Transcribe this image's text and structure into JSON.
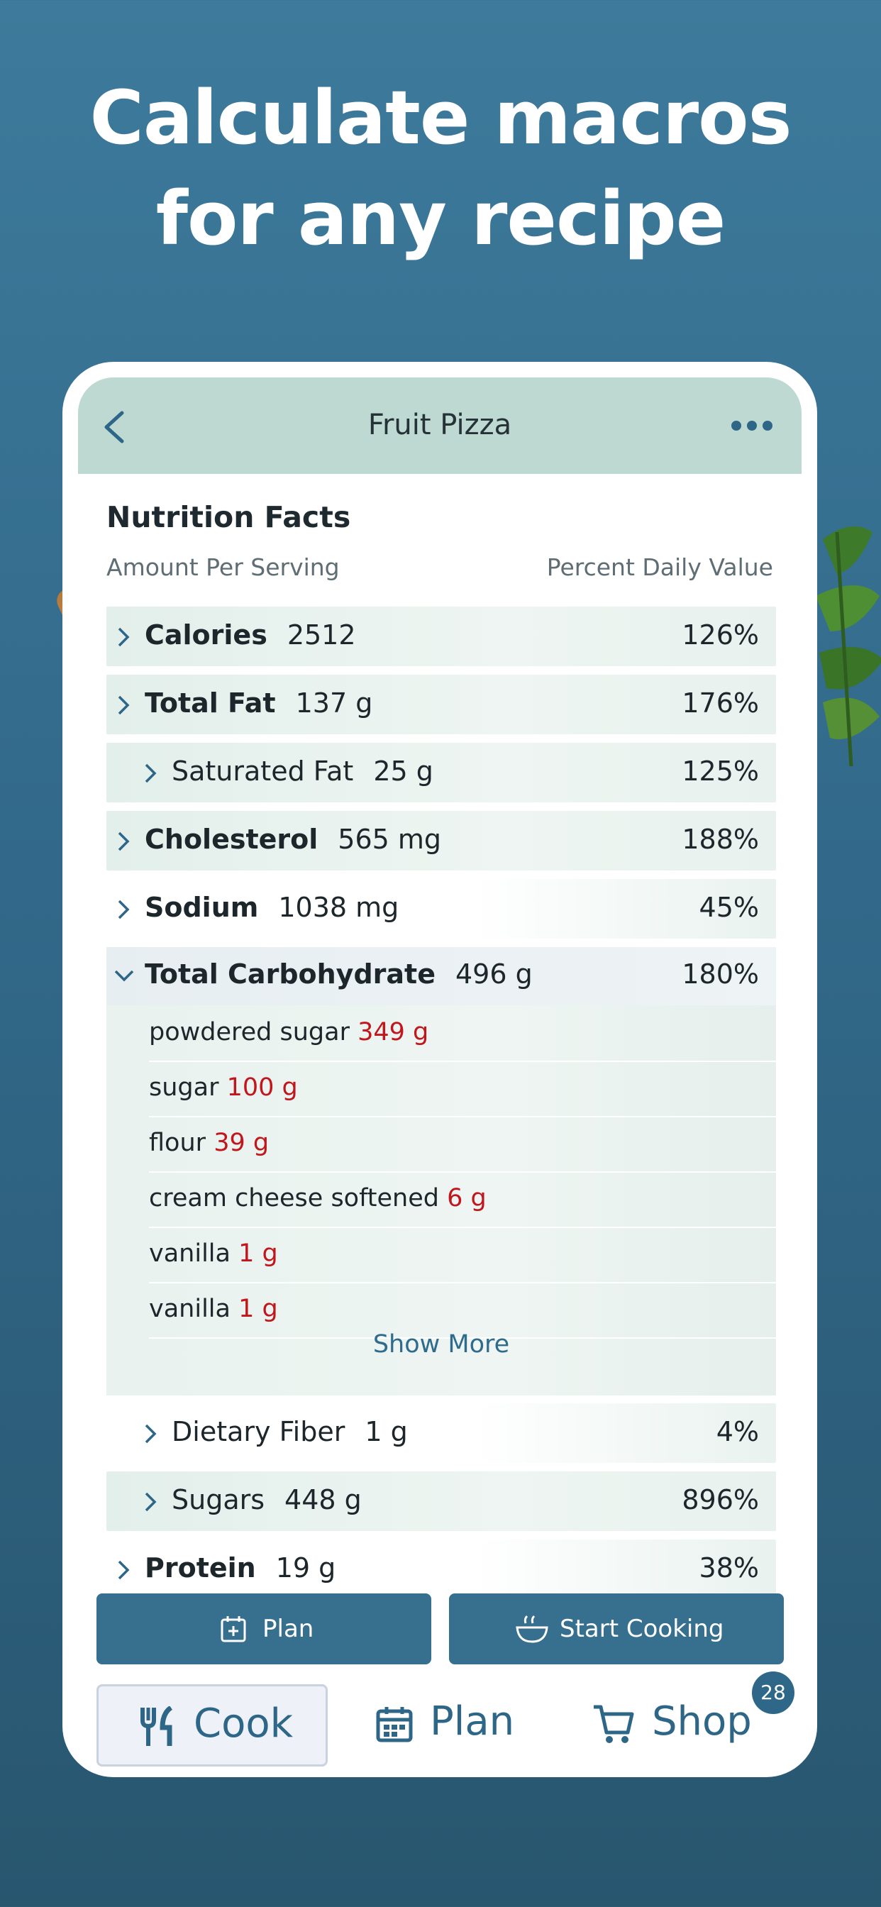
{
  "headline": [
    "Calculate macros",
    "for any recipe"
  ],
  "nav": {
    "title": "Fruit Pizza"
  },
  "nutrition": {
    "title": "Nutrition Facts",
    "amount_label": "Amount Per Serving",
    "percent_label": "Percent Daily Value",
    "rows": [
      {
        "name": "Calories",
        "value": "2512",
        "pct": "126%"
      },
      {
        "name": "Total Fat",
        "value": "137 g",
        "pct": "176%"
      },
      {
        "name": "Saturated Fat",
        "value": "25 g",
        "pct": "125%"
      },
      {
        "name": "Cholesterol",
        "value": "565 mg",
        "pct": "188%"
      },
      {
        "name": "Sodium",
        "value": "1038 mg",
        "pct": "45%"
      },
      {
        "name": "Total Carbohydrate",
        "value": "496 g",
        "pct": "180%"
      },
      {
        "name": "Dietary Fiber",
        "value": "1 g",
        "pct": "4%"
      },
      {
        "name": "Sugars",
        "value": "448 g",
        "pct": "896%"
      },
      {
        "name": "Protein",
        "value": "19 g",
        "pct": "38%"
      }
    ],
    "ingredients": [
      {
        "name": "powdered sugar",
        "amount": "349 g"
      },
      {
        "name": "sugar",
        "amount": "100 g"
      },
      {
        "name": "flour",
        "amount": "39 g"
      },
      {
        "name": "cream cheese softened",
        "amount": "6 g"
      },
      {
        "name": "vanilla",
        "amount": "1 g"
      },
      {
        "name": "vanilla",
        "amount": "1 g"
      }
    ],
    "show_more": "Show More"
  },
  "actions": {
    "plan": "Plan",
    "start_cooking": "Start Cooking"
  },
  "tabs": {
    "cook": "Cook",
    "plan": "Plan",
    "shop": "Shop",
    "shop_badge": "28"
  },
  "colors": {
    "primary": "#376f8e",
    "header": "#bdd9d1",
    "amount_red": "#c0161c"
  }
}
